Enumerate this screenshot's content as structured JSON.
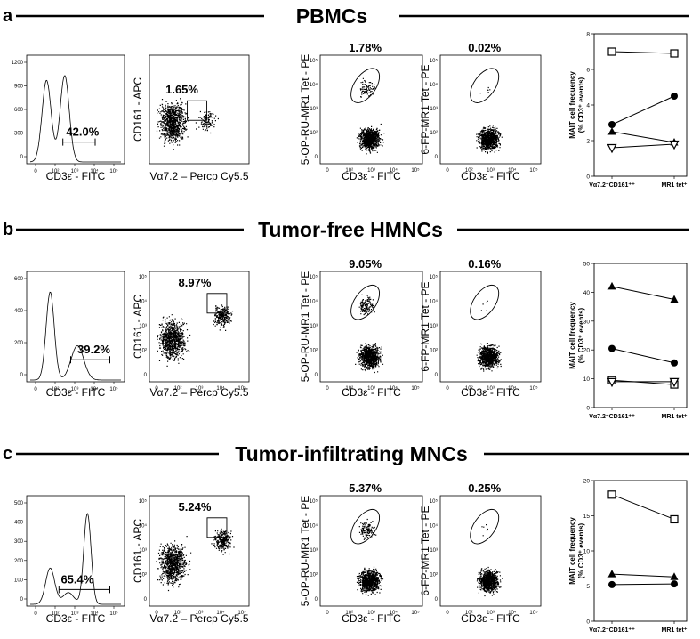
{
  "figure": {
    "rows": [
      {
        "letter": "a",
        "title": "PBMCs",
        "histogram": {
          "xlabel": "CD3ε - FITC",
          "yticks": [
            "1200",
            "900",
            "600",
            "300",
            "0"
          ],
          "xticks": [
            "0",
            "10²",
            "10³",
            "10⁴",
            "10⁵"
          ],
          "gate_pct": "42.0%"
        },
        "gating": {
          "xlabel": "Vα7.2 – Percp Cy5.5",
          "ylabel": "CD161 - APC",
          "gate_pct": "1.65%"
        },
        "tet": {
          "xlabel": "CD3ε - FITC",
          "ylabel": "5-OP-RU-MR1 Tet - PE",
          "gate_pct": "1.78%"
        },
        "ctrl": {
          "xlabel": "CD3ε - FITC",
          "ylabel": "6-FP-MR1 Tet - PE",
          "gate_pct": "0.02%"
        }
      },
      {
        "letter": "b",
        "title": "Tumor-free HMNCs",
        "histogram": {
          "xlabel": "CD3ε - FITC",
          "yticks": [
            "600",
            "400",
            "200",
            "0"
          ],
          "xticks": [
            "0",
            "10²",
            "10³",
            "10⁴",
            "10⁵"
          ],
          "gate_pct": "39.2%"
        },
        "gating": {
          "xlabel": "Vα7.2 – Percp Cy5.5",
          "ylabel": "CD161 - APC",
          "gate_pct": "8.97%"
        },
        "tet": {
          "xlabel": "CD3ε - FITC",
          "ylabel": "5-OP-RU-MR1 Tet - PE",
          "gate_pct": "9.05%"
        },
        "ctrl": {
          "xlabel": "CD3ε - FITC",
          "ylabel": "6-FP-MR1 Tet - PE",
          "gate_pct": "0.16%"
        }
      },
      {
        "letter": "c",
        "title": "Tumor-infiltrating MNCs",
        "histogram": {
          "xlabel": "CD3ε - FITC",
          "yticks": [
            "500",
            "400",
            "300",
            "200",
            "100",
            "0"
          ],
          "xticks": [
            "0",
            "10²",
            "10³",
            "10⁴",
            "10⁵"
          ],
          "gate_pct": "65.4%"
        },
        "gating": {
          "xlabel": "Vα7.2 – Percp Cy5.5",
          "ylabel": "CD161 - APC",
          "gate_pct": "5.24%"
        },
        "tet": {
          "xlabel": "CD3ε - FITC",
          "ylabel": "5-OP-RU-MR1 Tet - PE",
          "gate_pct": "5.37%"
        },
        "ctrl": {
          "xlabel": "CD3ε - FITC",
          "ylabel": "6-FP-MR1 Tet - PE",
          "gate_pct": "0.25%"
        }
      }
    ],
    "density_yticks": [
      "10⁵",
      "10⁴",
      "10³",
      "10²",
      "0"
    ],
    "density_xticks": [
      "0",
      "10²",
      "10³",
      "10⁴",
      "10⁵"
    ]
  },
  "chart_data": [
    {
      "type": "line",
      "panel": "a",
      "ylabel": "MAIT cell frequency\n(% CD3⁺ events)",
      "categories": [
        "Vα7.2⁺CD161⁺⁺",
        "MR1 tet⁺"
      ],
      "ylim": [
        0,
        8
      ],
      "yticks": [
        0,
        2,
        4,
        6,
        8
      ],
      "series": [
        {
          "marker": "open-square",
          "values": [
            7.0,
            6.9
          ]
        },
        {
          "marker": "filled-circle",
          "values": [
            2.9,
            4.5
          ]
        },
        {
          "marker": "filled-triangle",
          "values": [
            2.5,
            1.9
          ]
        },
        {
          "marker": "open-triangle-down",
          "values": [
            1.6,
            1.8
          ]
        }
      ]
    },
    {
      "type": "line",
      "panel": "b",
      "ylabel": "MAIT cell frequency\n(% CD3⁺ events)",
      "categories": [
        "Vα7.2⁺CD161⁺⁺",
        "MR1 tet⁺"
      ],
      "ylim": [
        0,
        50
      ],
      "yticks": [
        0,
        10,
        20,
        30,
        40,
        50
      ],
      "series": [
        {
          "marker": "filled-triangle",
          "values": [
            42.0,
            37.5
          ]
        },
        {
          "marker": "filled-circle",
          "values": [
            20.5,
            15.5
          ]
        },
        {
          "marker": "open-square",
          "values": [
            9.5,
            8.0
          ]
        },
        {
          "marker": "open-triangle-down",
          "values": [
            9.0,
            9.0
          ]
        }
      ]
    },
    {
      "type": "line",
      "panel": "c",
      "ylabel": "MAIT cell frequency\n(% CD3⁺ events)",
      "categories": [
        "Vα7.2⁺CD161⁺⁺",
        "MR1 tet⁺"
      ],
      "ylim": [
        0,
        20
      ],
      "yticks": [
        0,
        5,
        10,
        15,
        20
      ],
      "series": [
        {
          "marker": "open-square",
          "values": [
            18.0,
            14.5
          ]
        },
        {
          "marker": "filled-triangle",
          "values": [
            6.7,
            6.3
          ]
        },
        {
          "marker": "filled-circle",
          "values": [
            5.2,
            5.3
          ]
        }
      ]
    }
  ]
}
